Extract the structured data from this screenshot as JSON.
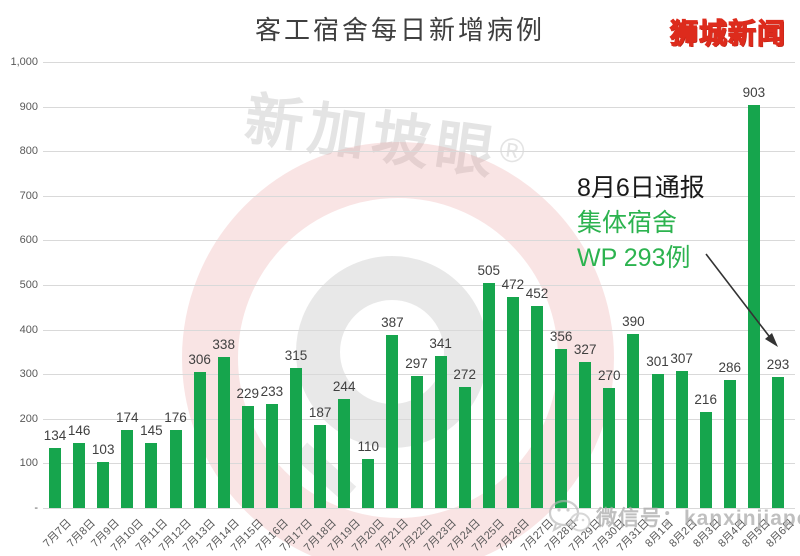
{
  "header": {
    "title": "客工宿舍每日新增病例",
    "brand": "狮城新闻"
  },
  "chart_data": {
    "type": "bar",
    "title": "客工宿舍每日新增病例",
    "categories": [
      "7月7日",
      "7月8日",
      "7月9日",
      "7月10日",
      "7月11日",
      "7月12日",
      "7月13日",
      "7月14日",
      "7月15日",
      "7月16日",
      "7月17日",
      "7月18日",
      "7月19日",
      "7月20日",
      "7月21日",
      "7月22日",
      "7月23日",
      "7月24日",
      "7月25日",
      "7月26日",
      "7月27日",
      "7月28日",
      "7月29日",
      "7月30日",
      "7月31日",
      "8月1日",
      "8月2日",
      "8月3日",
      "8月4日",
      "8月5日",
      "8月6日"
    ],
    "values": [
      134,
      146,
      103,
      174,
      145,
      176,
      306,
      338,
      229,
      233,
      315,
      187,
      244,
      110,
      387,
      297,
      341,
      272,
      505,
      472,
      452,
      356,
      327,
      270,
      390,
      301,
      307,
      216,
      286,
      903,
      293
    ],
    "xlabel": "",
    "ylabel": "",
    "ylim": [
      0,
      1000
    ],
    "ytick_step": 100,
    "ytick_labels": [
      "-",
      "100",
      "200",
      "300",
      "400",
      "500",
      "600",
      "700",
      "800",
      "900",
      "1,000"
    ],
    "grid": true,
    "legend": "none",
    "bar_color": "#16a54d"
  },
  "annotation": {
    "line1": "8月6日通报",
    "line2": "集体宿舍",
    "line3": "WP 293例",
    "arrow_target_value": 293
  },
  "watermark": {
    "logo_text": "新加坡眼",
    "registered_mark": "®",
    "wechat_label": "微信号：kanxinjiapo"
  },
  "colors": {
    "bar_green": "#16a54d",
    "annotation_green": "#2cb34f",
    "annotation_black": "#1a1a1a",
    "brand_yellow": "#ffe400",
    "brand_outline_red": "#dd2b1c",
    "gridline_gray": "#d9d9d9",
    "axis_text_gray": "#595959",
    "value_text_gray": "#404040",
    "title_gray": "#3f3f3f",
    "watermark_pink": "#eeb6b6",
    "watermark_gray": "#e4e4e4"
  }
}
